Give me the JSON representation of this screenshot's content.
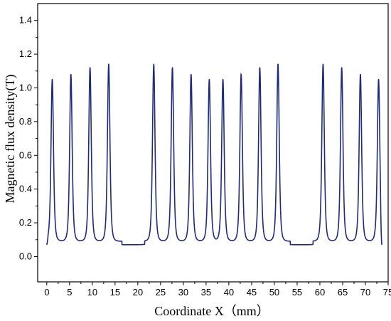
{
  "chart_data": {
    "type": "line",
    "title": "",
    "xlabel": "Coordinate X（mm）",
    "ylabel": "Magnetic flux density(T)",
    "xlim": [
      -2,
      75
    ],
    "ylim": [
      -0.15,
      1.5
    ],
    "xticks": [
      "0",
      "5",
      "10",
      "15",
      "20",
      "25",
      "30",
      "35",
      "40",
      "45",
      "50",
      "55",
      "60",
      "65",
      "70",
      "75"
    ],
    "yticks": [
      "0.0",
      "0.2",
      "0.4",
      "0.6",
      "0.8",
      "1.0",
      "1.2",
      "1.4"
    ],
    "grid": false,
    "legend": "none",
    "line_color": "#1f2a7a",
    "baseline_between_peaks": 0.09,
    "baseline_gap": 0.07,
    "gap_ranges": [
      [
        16.5,
        21.5
      ],
      [
        53.5,
        58.5
      ]
    ],
    "start_value": 0.07,
    "end_value": 0.07,
    "peaks": [
      {
        "x": 1.2,
        "y": 1.05
      },
      {
        "x": 5.3,
        "y": 1.08
      },
      {
        "x": 9.5,
        "y": 1.12
      },
      {
        "x": 13.6,
        "y": 1.14
      },
      {
        "x": 23.5,
        "y": 1.14
      },
      {
        "x": 27.6,
        "y": 1.12
      },
      {
        "x": 31.7,
        "y": 1.08
      },
      {
        "x": 35.7,
        "y": 1.05
      },
      {
        "x": 38.7,
        "y": 1.05
      },
      {
        "x": 42.7,
        "y": 1.08
      },
      {
        "x": 46.8,
        "y": 1.12
      },
      {
        "x": 50.8,
        "y": 1.14
      },
      {
        "x": 60.7,
        "y": 1.14
      },
      {
        "x": 64.8,
        "y": 1.12
      },
      {
        "x": 68.9,
        "y": 1.08
      },
      {
        "x": 72.9,
        "y": 1.05
      }
    ]
  }
}
